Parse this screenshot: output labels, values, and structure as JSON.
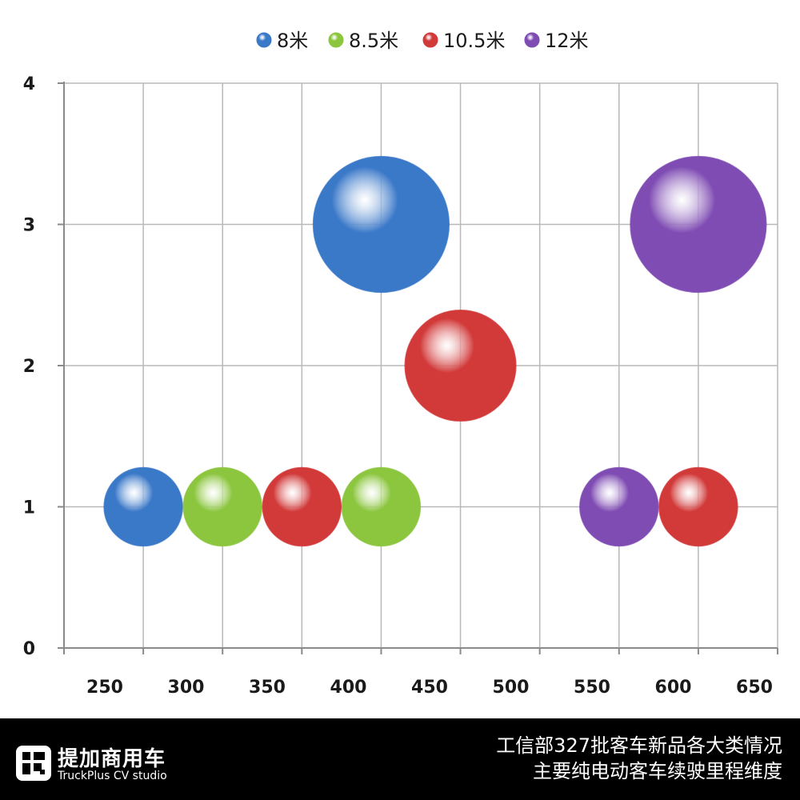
{
  "chart_data": {
    "type": "bubble",
    "title": "",
    "xlabel": "",
    "ylabel": "",
    "xlim": [
      225,
      675
    ],
    "ylim": [
      0,
      4
    ],
    "x_ticks": [
      "250",
      "300",
      "350",
      "400",
      "450",
      "500",
      "550",
      "600",
      "650"
    ],
    "y_ticks": [
      "0",
      "1",
      "2",
      "3",
      "4"
    ],
    "grid": true,
    "legend_position": "top",
    "series": [
      {
        "name": "8米",
        "color": "#3a78c8",
        "points": [
          {
            "x": 275,
            "y": 1,
            "size": 1
          },
          {
            "x": 425,
            "y": 3,
            "size": 3
          }
        ]
      },
      {
        "name": "8.5米",
        "color": "#8cc63f",
        "points": [
          {
            "x": 325,
            "y": 1,
            "size": 1
          },
          {
            "x": 425,
            "y": 1,
            "size": 1
          }
        ]
      },
      {
        "name": "10.5米",
        "color": "#d23a3a",
        "points": [
          {
            "x": 375,
            "y": 1,
            "size": 1
          },
          {
            "x": 475,
            "y": 2,
            "size": 2
          },
          {
            "x": 625,
            "y": 1,
            "size": 1
          }
        ]
      },
      {
        "name": "12米",
        "color": "#7f4cb3",
        "points": [
          {
            "x": 575,
            "y": 1,
            "size": 1
          },
          {
            "x": 625,
            "y": 3,
            "size": 3
          }
        ]
      }
    ]
  },
  "footer": {
    "brand_name": "提加商用车",
    "brand_sub": "TruckPlus CV studio",
    "caption_line1": "工信部327批客车新品各大类情况",
    "caption_line2": "主要纯电动客车续驶里程维度"
  }
}
